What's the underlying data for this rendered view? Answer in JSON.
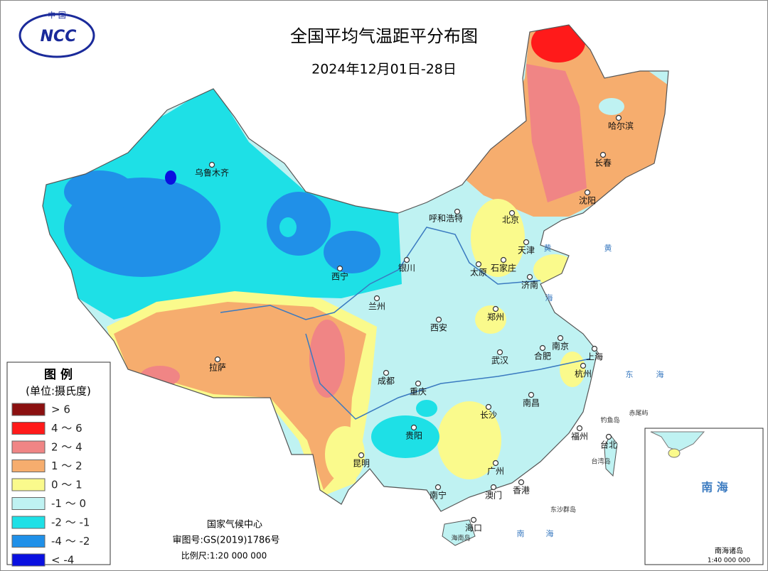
{
  "header": {
    "title": "全国平均气温距平分布图",
    "subtitle": "2024年12月01日-28日"
  },
  "logo": {
    "top": "中 国",
    "text": "NCC"
  },
  "legend": {
    "title": "图 例",
    "unit": "(单位:摄氏度)",
    "items": [
      {
        "label": "> 6",
        "color": "#8b1010"
      },
      {
        "label": "4 ～ 6",
        "color": "#ff1a1a"
      },
      {
        "label": "2 ～ 4",
        "color": "#f08585"
      },
      {
        "label": "1 ～ 2",
        "color": "#f6ad6e"
      },
      {
        "label": "0 ～ 1",
        "color": "#fafa8c"
      },
      {
        "label": "-1 ～ 0",
        "color": "#bff2f2"
      },
      {
        "label": "-2 ～ -1",
        "color": "#1ee0e6"
      },
      {
        "label": "-4 ～ -2",
        "color": "#2090e8"
      },
      {
        "label": "< -4",
        "color": "#0a10e0"
      }
    ]
  },
  "cities": [
    "乌鲁木齐",
    "哈尔滨",
    "长春",
    "沈阳",
    "呼和浩特",
    "北京",
    "天津",
    "石家庄",
    "太原",
    "济南",
    "银川",
    "西宁",
    "兰州",
    "郑州",
    "西安",
    "南京",
    "合肥",
    "上海",
    "武汉",
    "杭州",
    "成都",
    "重庆",
    "拉萨",
    "长沙",
    "南昌",
    "贵阳",
    "福州",
    "台北",
    "昆明",
    "广州",
    "南宁",
    "澳门",
    "香港",
    "海口"
  ],
  "seas": [
    "黄",
    "海",
    "黄",
    "东",
    "海",
    "南",
    "海"
  ],
  "islands": [
    "钓鱼岛",
    "赤尾屿",
    "台湾岛",
    "东沙群岛",
    "海南岛"
  ],
  "inset": {
    "sea": "南 海",
    "title": "南海诸岛",
    "scale": "1:40 000 000"
  },
  "footer": {
    "org": "国家气候中心",
    "approval": "审图号:GS(2019)1786号",
    "scale": "比例尺:1:20 000 000"
  }
}
